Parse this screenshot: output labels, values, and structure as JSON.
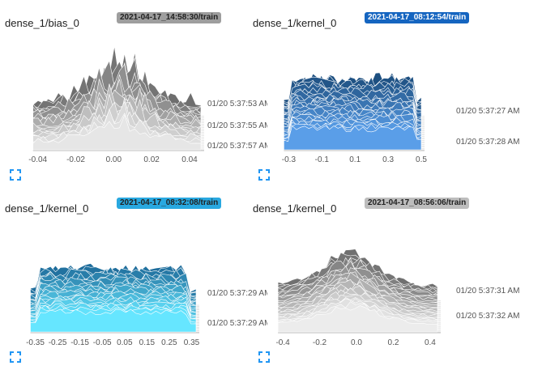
{
  "cards": [
    {
      "title": "dense_1/bias_0",
      "run": "2021-04-17_14:58:30/train",
      "badge_bg": "#9e9e9e",
      "badge_fg": "#212121",
      "palette_dark": "#6e6e6e",
      "palette_light": "#e6e6e6",
      "x_ticks": [
        "-0.04",
        "-0.02",
        "0.00",
        "0.02",
        "0.04"
      ],
      "x_tick_values": [
        -0.04,
        -0.02,
        0.0,
        0.02,
        0.04
      ],
      "x_range": [
        -0.048,
        0.046
      ],
      "y_labels": [
        "01/20 5:37:53 AM",
        "01/20 5:37:55 AM",
        "01/20 5:37:57 AM"
      ],
      "expand_icon": "expand-icon"
    },
    {
      "title": "dense_1/kernel_0",
      "run": "2021-04-17_08:12:54/train",
      "badge_bg": "#1565c0",
      "badge_fg": "#ffffff",
      "palette_dark": "#1d4f80",
      "palette_light": "#5a9ee8",
      "x_ticks": [
        "-0.3",
        "-0.1",
        "0.1",
        "0.3",
        "0.5"
      ],
      "x_tick_values": [
        -0.3,
        -0.1,
        0.1,
        0.3,
        0.5
      ],
      "x_range": [
        -0.38,
        0.5
      ],
      "y_labels": [
        "01/20 5:37:27 AM",
        "01/20 5:37:28 AM"
      ],
      "expand_icon": "expand-icon"
    },
    {
      "title": "dense_1/kernel_0",
      "run": "2021-04-17_08:32:08/train",
      "badge_bg": "#29a8e0",
      "badge_fg": "#212121",
      "palette_dark": "#1f6d9c",
      "palette_light": "#66e6ff",
      "x_ticks": [
        "-0.35",
        "-0.25",
        "-0.15",
        "-0.05",
        "0.05",
        "0.15",
        "0.25",
        "0.35"
      ],
      "x_tick_values": [
        -0.35,
        -0.25,
        -0.15,
        -0.05,
        0.05,
        0.15,
        0.25,
        0.35
      ],
      "x_range": [
        -0.37,
        0.37
      ],
      "y_labels": [
        "01/20 5:37:29 AM",
        "01/20 5:37:29 AM"
      ],
      "expand_icon": "expand-icon"
    },
    {
      "title": "dense_1/kernel_0",
      "run": "2021-04-17_08:56:06/train",
      "badge_bg": "#bdbdbd",
      "badge_fg": "#212121",
      "palette_dark": "#707070",
      "palette_light": "#ececec",
      "x_ticks": [
        "-0.4",
        "-0.2",
        "0.0",
        "0.2",
        "0.4"
      ],
      "x_tick_values": [
        -0.4,
        -0.2,
        0.0,
        0.2,
        0.4
      ],
      "x_range": [
        -0.44,
        0.44
      ],
      "y_labels": [
        "01/20 5:37:31 AM",
        "01/20 5:37:32 AM"
      ],
      "expand_icon": "expand-icon"
    }
  ]
}
